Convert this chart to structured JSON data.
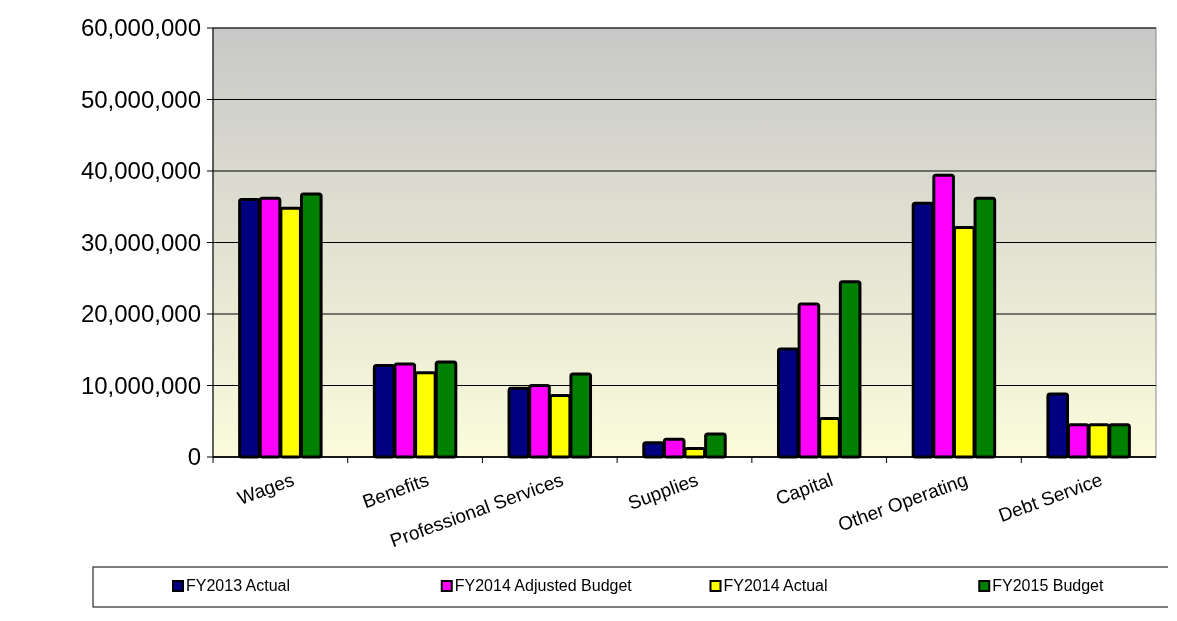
{
  "chart_data": {
    "type": "bar",
    "categories": [
      "Wages",
      "Benefits",
      "Professional Services",
      "Supplies",
      "Capital",
      "Other Operating",
      "Debt Service"
    ],
    "series": [
      {
        "name": "FY2013 Actual",
        "color": "#000080",
        "values": [
          36000000,
          12800000,
          9600000,
          2000000,
          15100000,
          35500000,
          8800000
        ]
      },
      {
        "name": "FY2014 Adjusted Budget",
        "color": "#ff00ff",
        "values": [
          36200000,
          13000000,
          10000000,
          2500000,
          21400000,
          39400000,
          4500000
        ]
      },
      {
        "name": "FY2014 Actual",
        "color": "#ffff00",
        "values": [
          34800000,
          11800000,
          8600000,
          1200000,
          5400000,
          32100000,
          4500000
        ]
      },
      {
        "name": "FY2015 Budget",
        "color": "#008000",
        "values": [
          36800000,
          13300000,
          11600000,
          3200000,
          24500000,
          36200000,
          4500000
        ]
      }
    ],
    "ylim": [
      0,
      60000000
    ],
    "yticks": [
      {
        "value": 0,
        "label": "0"
      },
      {
        "value": 10000000,
        "label": "10,000,000"
      },
      {
        "value": 20000000,
        "label": "20,000,000"
      },
      {
        "value": 30000000,
        "label": "30,000,000"
      },
      {
        "value": 40000000,
        "label": "40,000,000"
      },
      {
        "value": 50000000,
        "label": "50,000,000"
      },
      {
        "value": 60000000,
        "label": "60,000,000"
      }
    ],
    "grid": "y",
    "legend": "bottom"
  }
}
